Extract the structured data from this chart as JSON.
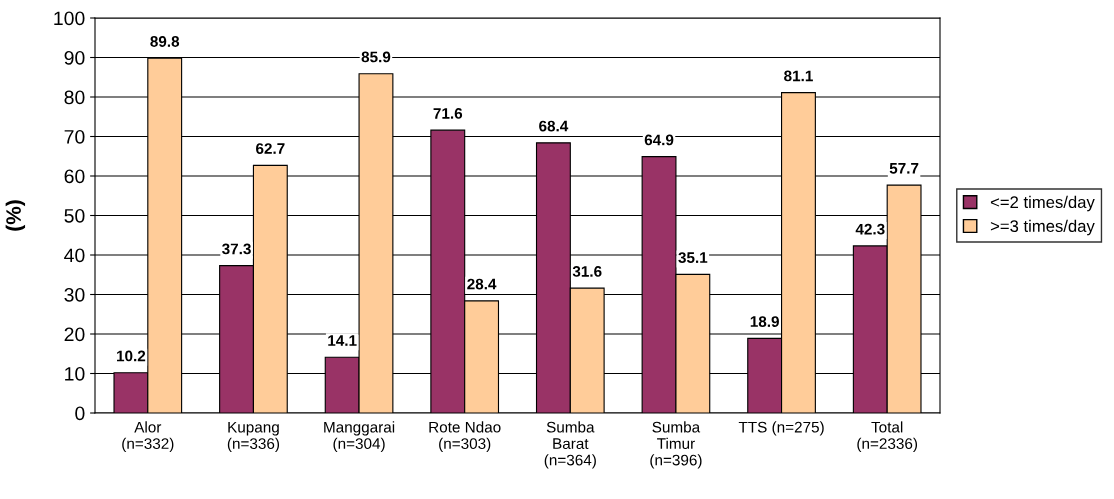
{
  "chart_data": {
    "type": "bar",
    "ylabel": "(%)",
    "categories": [
      "Alor\n(n=332)",
      "Kupang\n(n=336)",
      "Manggarai\n(n=304)",
      "Rote Ndao\n(n=303)",
      "Sumba\nBarat\n(n=364)",
      "Sumba\nTimur\n(n=396)",
      "TTS (n=275)",
      "Total\n(n=2336)"
    ],
    "series": [
      {
        "name": "<=2 times/day",
        "color": "#993366",
        "values": [
          10.2,
          37.3,
          14.1,
          71.6,
          68.4,
          64.9,
          18.9,
          42.3
        ]
      },
      {
        "name": ">=3 times/day",
        "color": "#ffcc99",
        "values": [
          89.8,
          62.7,
          85.9,
          28.4,
          31.6,
          35.1,
          81.1,
          57.7
        ]
      }
    ],
    "ylim": [
      0,
      100
    ],
    "yticks": [
      0,
      10,
      20,
      30,
      40,
      50,
      60,
      70,
      80,
      90,
      100
    ],
    "grid": "y",
    "legend": "right",
    "data_labels": true
  }
}
